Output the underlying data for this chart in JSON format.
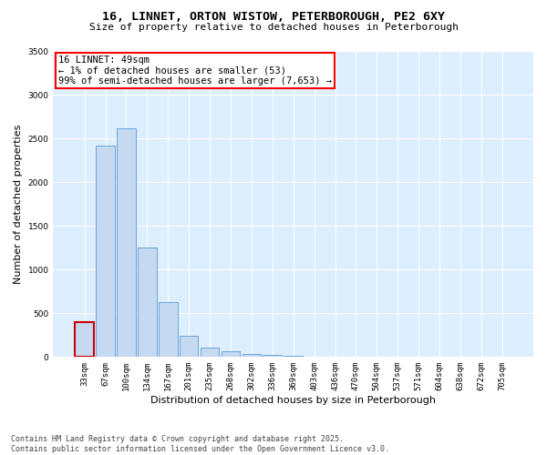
{
  "title1": "16, LINNET, ORTON WISTOW, PETERBOROUGH, PE2 6XY",
  "title2": "Size of property relative to detached houses in Peterborough",
  "xlabel": "Distribution of detached houses by size in Peterborough",
  "ylabel": "Number of detached properties",
  "categories": [
    "33sqm",
    "67sqm",
    "100sqm",
    "134sqm",
    "167sqm",
    "201sqm",
    "235sqm",
    "268sqm",
    "302sqm",
    "336sqm",
    "369sqm",
    "403sqm",
    "436sqm",
    "470sqm",
    "504sqm",
    "537sqm",
    "571sqm",
    "604sqm",
    "638sqm",
    "672sqm",
    "705sqm"
  ],
  "values": [
    400,
    2420,
    2620,
    1250,
    630,
    240,
    110,
    70,
    30,
    20,
    10,
    5,
    3,
    2,
    1,
    1,
    1,
    1,
    0,
    0,
    0
  ],
  "bar_color": "#c5d9f0",
  "bar_edge_color": "#5b9bd5",
  "highlight_bar_index": 0,
  "highlight_bar_edge_color": "#cc0000",
  "annotation_text": "16 LINNET: 49sqm\n← 1% of detached houses are smaller (53)\n99% of semi-detached houses are larger (7,653) →",
  "ylim": [
    0,
    3500
  ],
  "yticks": [
    0,
    500,
    1000,
    1500,
    2000,
    2500,
    3000,
    3500
  ],
  "background_color": "#ffffff",
  "plot_background_color": "#ddeeff",
  "grid_color": "#ffffff",
  "footer_line1": "Contains HM Land Registry data © Crown copyright and database right 2025.",
  "footer_line2": "Contains public sector information licensed under the Open Government Licence v3.0.",
  "title1_fontsize": 9.5,
  "title2_fontsize": 8,
  "tick_fontsize": 6.5,
  "axis_label_fontsize": 8,
  "annotation_fontsize": 7.5,
  "footer_fontsize": 6
}
